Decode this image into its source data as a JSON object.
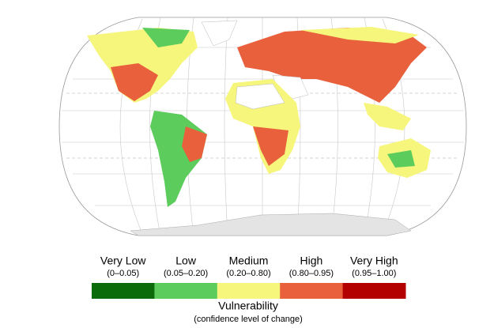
{
  "legend": {
    "title": "Vulnerability",
    "subtitle": "(confidence level of change)",
    "classes": [
      {
        "label": "Very Low",
        "range": "(0–0.05)",
        "color": "#0b6b0b"
      },
      {
        "label": "Low",
        "range": "(0.05–0.20)",
        "color": "#5ccc5c"
      },
      {
        "label": "Medium",
        "range": "(0.20–0.80)",
        "color": "#f6f57c"
      },
      {
        "label": "High",
        "range": "(0.80–0.95)",
        "color": "#e8603c"
      },
      {
        "label": "Very High",
        "range": "(0.95–1.00)",
        "color": "#b30000"
      }
    ]
  }
}
